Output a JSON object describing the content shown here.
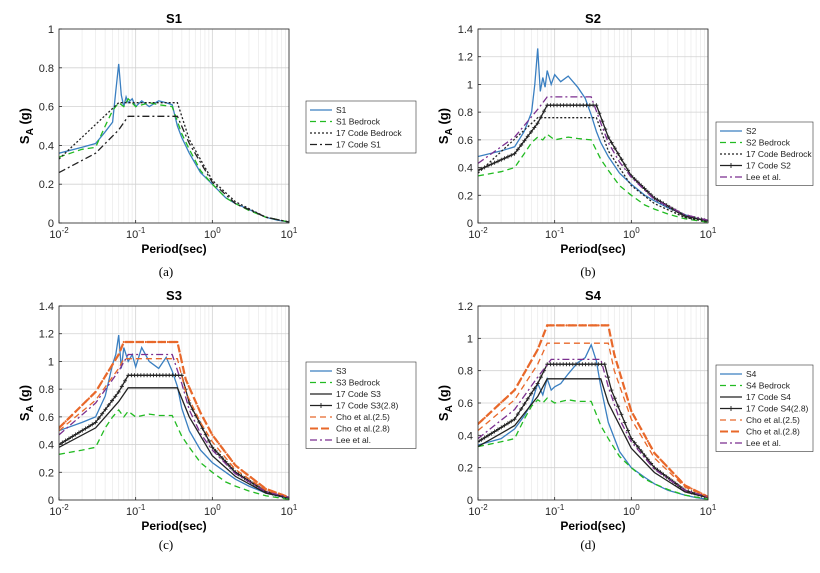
{
  "chart_data": [
    {
      "panel": "(a)",
      "type": "line",
      "title": "S1",
      "xlabel": "Period(sec)",
      "ylabel_main": "S",
      "ylabel_sub": "A",
      "ylabel_rest": " (g)",
      "xscale": "log",
      "xlim": [
        0.01,
        10
      ],
      "ylim": [
        0,
        1
      ],
      "xticks": [
        0.01,
        0.1,
        1,
        10
      ],
      "yticks": [
        0,
        0.2,
        0.4,
        0.6,
        0.8,
        1
      ],
      "ytick_labels": [
        "0",
        "0.2",
        "0.4",
        "0.6",
        "0.8",
        "1"
      ],
      "grid": true,
      "legend_position": "right",
      "series": [
        {
          "name": "S1",
          "color": "#3a7fc1",
          "dash": "solid",
          "marker": "none",
          "x": [
            0.01,
            0.02,
            0.03,
            0.04,
            0.05,
            0.055,
            0.06,
            0.065,
            0.07,
            0.075,
            0.08,
            0.09,
            0.1,
            0.12,
            0.15,
            0.2,
            0.25,
            0.3,
            0.35,
            0.4,
            0.5,
            0.7,
            1,
            1.5,
            2,
            3,
            5,
            7,
            10
          ],
          "y": [
            0.36,
            0.39,
            0.41,
            0.47,
            0.52,
            0.68,
            0.82,
            0.66,
            0.6,
            0.65,
            0.62,
            0.64,
            0.6,
            0.63,
            0.6,
            0.63,
            0.62,
            0.61,
            0.5,
            0.44,
            0.36,
            0.26,
            0.2,
            0.13,
            0.1,
            0.07,
            0.03,
            0.015,
            0.005
          ]
        },
        {
          "name": "S1 Bedrock",
          "color": "#22bb22",
          "dash": "6,4",
          "marker": "none",
          "x": [
            0.01,
            0.02,
            0.03,
            0.04,
            0.05,
            0.06,
            0.07,
            0.08,
            0.1,
            0.15,
            0.2,
            0.3,
            0.4,
            0.5,
            0.7,
            1,
            1.5,
            2,
            3,
            5,
            10
          ],
          "y": [
            0.34,
            0.38,
            0.39,
            0.5,
            0.58,
            0.62,
            0.6,
            0.64,
            0.6,
            0.62,
            0.61,
            0.6,
            0.46,
            0.38,
            0.27,
            0.2,
            0.13,
            0.1,
            0.065,
            0.03,
            0.005
          ]
        },
        {
          "name": "17 Code Bedrock",
          "color": "#222222",
          "dash": "2,2",
          "marker": "none",
          "x": [
            0.01,
            0.06,
            0.35,
            0.5,
            1,
            2,
            5,
            10
          ],
          "y": [
            0.33,
            0.62,
            0.62,
            0.43,
            0.22,
            0.11,
            0.03,
            0.005
          ]
        },
        {
          "name": "17 Code S1",
          "color": "#222222",
          "dash": "7,3,2,3",
          "marker": "none",
          "x": [
            0.01,
            0.03,
            0.06,
            0.08,
            0.35,
            0.5,
            1,
            2,
            5,
            10
          ],
          "y": [
            0.26,
            0.36,
            0.48,
            0.55,
            0.55,
            0.41,
            0.21,
            0.1,
            0.03,
            0.005
          ]
        }
      ]
    },
    {
      "panel": "(b)",
      "type": "line",
      "title": "S2",
      "xlabel": "Period(sec)",
      "ylabel_main": "S",
      "ylabel_sub": "A",
      "ylabel_rest": " (g)",
      "xscale": "log",
      "xlim": [
        0.01,
        10
      ],
      "ylim": [
        0,
        1.4
      ],
      "xticks": [
        0.01,
        0.1,
        1,
        10
      ],
      "yticks": [
        0,
        0.2,
        0.4,
        0.6,
        0.8,
        1,
        1.2,
        1.4
      ],
      "ytick_labels": [
        "0",
        "0.2",
        "0.4",
        "0.6",
        "0.8",
        "1",
        "1.2",
        "1.4"
      ],
      "grid": true,
      "legend_position": "right",
      "series": [
        {
          "name": "S2",
          "color": "#3a7fc1",
          "dash": "solid",
          "marker": "none",
          "x": [
            0.01,
            0.02,
            0.03,
            0.04,
            0.05,
            0.055,
            0.06,
            0.065,
            0.07,
            0.075,
            0.08,
            0.09,
            0.1,
            0.12,
            0.15,
            0.2,
            0.25,
            0.3,
            0.35,
            0.4,
            0.5,
            0.7,
            1,
            1.5,
            2,
            3,
            5,
            7,
            10
          ],
          "y": [
            0.48,
            0.52,
            0.55,
            0.66,
            0.8,
            1.0,
            1.26,
            0.95,
            1.05,
            0.98,
            1.1,
            1.0,
            1.07,
            1.02,
            1.06,
            0.98,
            0.9,
            0.78,
            0.66,
            0.58,
            0.48,
            0.36,
            0.28,
            0.2,
            0.16,
            0.11,
            0.06,
            0.035,
            0.015
          ]
        },
        {
          "name": "S2 Bedrock",
          "color": "#22bb22",
          "dash": "6,4",
          "marker": "none",
          "x": [
            0.01,
            0.02,
            0.03,
            0.04,
            0.05,
            0.06,
            0.07,
            0.08,
            0.1,
            0.15,
            0.2,
            0.3,
            0.4,
            0.5,
            0.7,
            1,
            1.5,
            2,
            3,
            5,
            10
          ],
          "y": [
            0.34,
            0.37,
            0.4,
            0.5,
            0.58,
            0.62,
            0.6,
            0.64,
            0.6,
            0.62,
            0.61,
            0.6,
            0.46,
            0.38,
            0.27,
            0.2,
            0.13,
            0.1,
            0.065,
            0.03,
            0.005
          ]
        },
        {
          "name": "17 Code Bedrock",
          "color": "#222222",
          "dash": "2,2",
          "marker": "none",
          "x": [
            0.01,
            0.06,
            0.35,
            0.5,
            1,
            2,
            5,
            10
          ],
          "y": [
            0.36,
            0.76,
            0.76,
            0.52,
            0.27,
            0.14,
            0.04,
            0.01
          ]
        },
        {
          "name": "17 Code S2",
          "color": "#222222",
          "dash": "solid",
          "marker": "plus",
          "x": [
            0.01,
            0.03,
            0.06,
            0.08,
            0.35,
            0.5,
            1,
            2,
            5,
            10
          ],
          "y": [
            0.38,
            0.5,
            0.72,
            0.85,
            0.85,
            0.62,
            0.34,
            0.18,
            0.05,
            0.015
          ]
        },
        {
          "name": "Lee et al.",
          "color": "#7b2f8f",
          "dash": "7,3,2,3",
          "marker": "none",
          "x": [
            0.01,
            0.03,
            0.06,
            0.08,
            0.3,
            0.4,
            0.5,
            0.7,
            1,
            2,
            5,
            10
          ],
          "y": [
            0.43,
            0.62,
            0.82,
            0.91,
            0.91,
            0.72,
            0.58,
            0.44,
            0.33,
            0.17,
            0.06,
            0.02
          ]
        }
      ]
    },
    {
      "panel": "(c)",
      "type": "line",
      "title": "S3",
      "xlabel": "Period(sec)",
      "ylabel_main": "S",
      "ylabel_sub": "A",
      "ylabel_rest": " (g)",
      "xscale": "log",
      "xlim": [
        0.01,
        10
      ],
      "ylim": [
        0,
        1.4
      ],
      "xticks": [
        0.01,
        0.1,
        1,
        10
      ],
      "yticks": [
        0,
        0.2,
        0.4,
        0.6,
        0.8,
        1,
        1.2,
        1.4
      ],
      "ytick_labels": [
        "0",
        "0.2",
        "0.4",
        "0.6",
        "0.8",
        "1",
        "1.2",
        "1.4"
      ],
      "grid": true,
      "legend_position": "right",
      "series": [
        {
          "name": "S3",
          "color": "#3a7fc1",
          "dash": "solid",
          "marker": "none",
          "x": [
            0.01,
            0.02,
            0.03,
            0.04,
            0.05,
            0.055,
            0.06,
            0.065,
            0.07,
            0.08,
            0.09,
            0.1,
            0.12,
            0.15,
            0.2,
            0.25,
            0.3,
            0.35,
            0.4,
            0.5,
            0.7,
            1,
            1.5,
            2,
            3,
            5,
            7,
            10
          ],
          "y": [
            0.5,
            0.56,
            0.6,
            0.75,
            0.98,
            1.05,
            1.19,
            0.95,
            1.1,
            1.0,
            1.05,
            0.96,
            1.1,
            1.0,
            0.95,
            1.03,
            0.93,
            0.82,
            0.66,
            0.5,
            0.36,
            0.27,
            0.2,
            0.15,
            0.1,
            0.05,
            0.03,
            0.01
          ]
        },
        {
          "name": "S3 Bedrock",
          "color": "#22bb22",
          "dash": "6,4",
          "marker": "none",
          "x": [
            0.01,
            0.02,
            0.03,
            0.04,
            0.05,
            0.06,
            0.07,
            0.08,
            0.1,
            0.15,
            0.2,
            0.3,
            0.4,
            0.5,
            0.7,
            1,
            1.5,
            2,
            3,
            5,
            10
          ],
          "y": [
            0.33,
            0.36,
            0.38,
            0.52,
            0.6,
            0.65,
            0.6,
            0.64,
            0.6,
            0.62,
            0.61,
            0.61,
            0.46,
            0.38,
            0.27,
            0.2,
            0.13,
            0.1,
            0.065,
            0.03,
            0.005
          ]
        },
        {
          "name": "17 Code S3",
          "color": "#222222",
          "dash": "solid",
          "marker": "none",
          "x": [
            0.01,
            0.03,
            0.06,
            0.08,
            0.35,
            0.5,
            1,
            2,
            5,
            10
          ],
          "y": [
            0.38,
            0.52,
            0.71,
            0.81,
            0.81,
            0.6,
            0.32,
            0.17,
            0.05,
            0.015
          ]
        },
        {
          "name": "17 Code S3(2.8)",
          "color": "#222222",
          "dash": "solid",
          "marker": "plus",
          "x": [
            0.01,
            0.03,
            0.06,
            0.08,
            0.4,
            0.5,
            1,
            2,
            5,
            10
          ],
          "y": [
            0.4,
            0.56,
            0.78,
            0.9,
            0.9,
            0.7,
            0.38,
            0.2,
            0.06,
            0.015
          ]
        },
        {
          "name": "Cho et al.(2.5)",
          "color": "#e8682a",
          "dash": "6,4",
          "marker": "none",
          "x": [
            0.01,
            0.03,
            0.06,
            0.07,
            0.35,
            0.45,
            0.7,
            1,
            2,
            5,
            10
          ],
          "y": [
            0.5,
            0.72,
            0.95,
            1.02,
            1.02,
            0.78,
            0.56,
            0.42,
            0.22,
            0.07,
            0.02
          ]
        },
        {
          "name": "Cho et al.(2.8)",
          "color": "#e8682a",
          "dash": "8,3",
          "marker": "dot",
          "x": [
            0.01,
            0.03,
            0.06,
            0.07,
            0.35,
            0.45,
            0.7,
            1,
            2,
            5,
            10
          ],
          "y": [
            0.52,
            0.78,
            1.05,
            1.14,
            1.14,
            0.87,
            0.63,
            0.47,
            0.25,
            0.08,
            0.02
          ]
        },
        {
          "name": "Lee et al.",
          "color": "#7b2f8f",
          "dash": "7,3,2,3",
          "marker": "none",
          "x": [
            0.01,
            0.03,
            0.06,
            0.08,
            0.3,
            0.4,
            0.5,
            0.7,
            1,
            2,
            5,
            10
          ],
          "y": [
            0.47,
            0.7,
            0.93,
            1.05,
            1.05,
            0.84,
            0.65,
            0.48,
            0.36,
            0.19,
            0.06,
            0.02
          ]
        }
      ]
    },
    {
      "panel": "(d)",
      "type": "line",
      "title": "S4",
      "xlabel": "Period(sec)",
      "ylabel_main": "S",
      "ylabel_sub": "A",
      "ylabel_rest": " (g)",
      "xscale": "log",
      "xlim": [
        0.01,
        10
      ],
      "ylim": [
        0,
        1.2
      ],
      "xticks": [
        0.01,
        0.1,
        1,
        10
      ],
      "yticks": [
        0,
        0.2,
        0.4,
        0.6,
        0.8,
        1,
        1.2
      ],
      "ytick_labels": [
        "0",
        "0.2",
        "0.4",
        "0.6",
        "0.8",
        "1",
        "1.2"
      ],
      "grid": true,
      "legend_position": "right",
      "series": [
        {
          "name": "S4",
          "color": "#3a7fc1",
          "dash": "solid",
          "marker": "none",
          "x": [
            0.01,
            0.02,
            0.03,
            0.04,
            0.05,
            0.06,
            0.07,
            0.08,
            0.09,
            0.1,
            0.12,
            0.15,
            0.2,
            0.25,
            0.3,
            0.35,
            0.4,
            0.5,
            0.7,
            1,
            1.5,
            2,
            3,
            5,
            7,
            10
          ],
          "y": [
            0.34,
            0.38,
            0.44,
            0.52,
            0.6,
            0.72,
            0.65,
            0.75,
            0.68,
            0.7,
            0.72,
            0.78,
            0.85,
            0.88,
            0.96,
            0.86,
            0.7,
            0.48,
            0.3,
            0.2,
            0.14,
            0.1,
            0.06,
            0.03,
            0.015,
            0.005
          ]
        },
        {
          "name": "S4 Bedrock",
          "color": "#22bb22",
          "dash": "6,4",
          "marker": "none",
          "x": [
            0.01,
            0.02,
            0.03,
            0.04,
            0.05,
            0.06,
            0.07,
            0.08,
            0.1,
            0.15,
            0.2,
            0.3,
            0.4,
            0.5,
            0.7,
            1,
            1.5,
            2,
            3,
            5,
            10
          ],
          "y": [
            0.33,
            0.36,
            0.38,
            0.5,
            0.58,
            0.62,
            0.6,
            0.63,
            0.6,
            0.62,
            0.61,
            0.61,
            0.46,
            0.38,
            0.27,
            0.2,
            0.13,
            0.1,
            0.065,
            0.03,
            0.005
          ]
        },
        {
          "name": "17 Code S4",
          "color": "#222222",
          "dash": "solid",
          "marker": "none",
          "x": [
            0.01,
            0.03,
            0.06,
            0.08,
            0.4,
            0.5,
            1,
            2,
            5,
            10
          ],
          "y": [
            0.33,
            0.46,
            0.64,
            0.75,
            0.75,
            0.6,
            0.32,
            0.17,
            0.05,
            0.015
          ]
        },
        {
          "name": "17 Code S4(2.8)",
          "color": "#222222",
          "dash": "solid",
          "marker": "plus",
          "x": [
            0.01,
            0.03,
            0.06,
            0.08,
            0.45,
            0.55,
            1,
            2,
            5,
            10
          ],
          "y": [
            0.36,
            0.5,
            0.72,
            0.84,
            0.84,
            0.68,
            0.38,
            0.2,
            0.06,
            0.015
          ]
        },
        {
          "name": "Cho et al.(2.5)",
          "color": "#e8682a",
          "dash": "6,4",
          "marker": "none",
          "x": [
            0.01,
            0.03,
            0.06,
            0.08,
            0.5,
            0.6,
            1,
            2,
            5,
            10
          ],
          "y": [
            0.43,
            0.62,
            0.84,
            0.97,
            0.97,
            0.8,
            0.5,
            0.26,
            0.08,
            0.02
          ]
        },
        {
          "name": "Cho et al.(2.8)",
          "color": "#e8682a",
          "dash": "8,3",
          "marker": "dot",
          "x": [
            0.01,
            0.03,
            0.06,
            0.08,
            0.5,
            0.6,
            1,
            2,
            5,
            10
          ],
          "y": [
            0.47,
            0.68,
            0.93,
            1.08,
            1.08,
            0.9,
            0.55,
            0.29,
            0.09,
            0.02
          ]
        },
        {
          "name": "Lee et al.",
          "color": "#7b2f8f",
          "dash": "7,3,2,3",
          "marker": "none",
          "x": [
            0.01,
            0.03,
            0.06,
            0.09,
            0.4,
            0.5,
            0.7,
            1,
            2,
            5,
            10
          ],
          "y": [
            0.38,
            0.56,
            0.76,
            0.87,
            0.87,
            0.7,
            0.5,
            0.36,
            0.19,
            0.06,
            0.02
          ]
        }
      ]
    }
  ]
}
